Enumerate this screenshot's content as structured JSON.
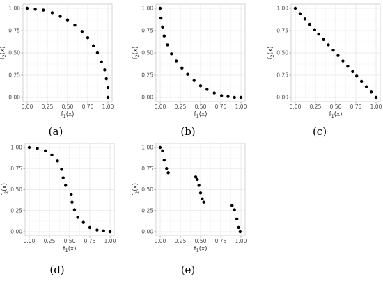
{
  "figure": {
    "captions": [
      "(a)",
      "(b)",
      "(c)",
      "(d)",
      "(e)"
    ]
  },
  "colors": {
    "panel_bg": "#ffffff",
    "grid_major": "#e6e6e6",
    "grid_minor": "#f3f3f3",
    "border": "#c8c8c8",
    "point": "#000000",
    "tick_text": "#4d4d4d",
    "axis_title": "#222222"
  },
  "chart_data": [
    {
      "id": "a",
      "type": "scatter",
      "xlabel": "f1(x)",
      "ylabel": "f2(x)",
      "xlim": [
        0,
        1
      ],
      "ylim": [
        0,
        1
      ],
      "xticks": [
        "0.00",
        "0.25",
        "0.50",
        "0.75",
        "1.00"
      ],
      "yticks": [
        "0.00",
        "0.25",
        "0.50",
        "0.75",
        "1.00"
      ],
      "grid": true,
      "x": [
        0.0,
        0.1,
        0.2,
        0.31,
        0.41,
        0.5,
        0.59,
        0.68,
        0.75,
        0.82,
        0.87,
        0.92,
        0.96,
        0.98,
        1.0,
        1.0
      ],
      "y": [
        1.0,
        0.99,
        0.98,
        0.95,
        0.91,
        0.87,
        0.81,
        0.74,
        0.67,
        0.58,
        0.5,
        0.4,
        0.31,
        0.21,
        0.11,
        0.0
      ]
    },
    {
      "id": "b",
      "type": "scatter",
      "xlabel": "f1(x)",
      "ylabel": "f2(x)",
      "xlim": [
        0,
        1
      ],
      "ylim": [
        0,
        1
      ],
      "xticks": [
        "0.00",
        "0.25",
        "0.50",
        "0.75",
        "1.00"
      ],
      "yticks": [
        "0.00",
        "0.25",
        "0.50",
        "0.75",
        "1.00"
      ],
      "grid": true,
      "x": [
        0.0,
        0.01,
        0.03,
        0.05,
        0.09,
        0.14,
        0.2,
        0.27,
        0.34,
        0.42,
        0.5,
        0.58,
        0.67,
        0.76,
        0.84,
        0.92,
        1.0
      ],
      "y": [
        1.0,
        0.89,
        0.79,
        0.69,
        0.59,
        0.49,
        0.41,
        0.33,
        0.26,
        0.19,
        0.13,
        0.09,
        0.05,
        0.02,
        0.01,
        0.0,
        0.0
      ]
    },
    {
      "id": "c",
      "type": "scatter",
      "xlabel": "f1(x)",
      "ylabel": "f2(x)",
      "xlim": [
        0,
        1
      ],
      "ylim": [
        0,
        1
      ],
      "xticks": [
        "0.00",
        "0.25",
        "0.50",
        "0.75",
        "1.00"
      ],
      "yticks": [
        "0.00",
        "0.25",
        "0.50",
        "0.75",
        "1.00"
      ],
      "grid": true,
      "x": [
        0.0,
        0.06,
        0.12,
        0.18,
        0.24,
        0.29,
        0.35,
        0.41,
        0.47,
        0.53,
        0.59,
        0.65,
        0.71,
        0.76,
        0.82,
        0.88,
        0.94,
        1.0
      ],
      "y": [
        1.0,
        0.94,
        0.88,
        0.82,
        0.76,
        0.71,
        0.65,
        0.59,
        0.53,
        0.47,
        0.41,
        0.35,
        0.29,
        0.24,
        0.18,
        0.12,
        0.06,
        0.0
      ]
    },
    {
      "id": "d",
      "type": "scatter",
      "xlabel": "f1(x)",
      "ylabel": "f2(x)",
      "xlim": [
        0,
        1
      ],
      "ylim": [
        0,
        1
      ],
      "xticks": [
        "0.00",
        "0.25",
        "0.50",
        "0.75",
        "1.00"
      ],
      "yticks": [
        "0.00",
        "0.25",
        "0.50",
        "0.75",
        "1.00"
      ],
      "grid": true,
      "x": [
        0.0,
        0.1,
        0.2,
        0.28,
        0.35,
        0.4,
        0.42,
        0.45,
        0.52,
        0.53,
        0.56,
        0.6,
        0.67,
        0.75,
        0.84,
        0.92,
        1.0
      ],
      "y": [
        1.0,
        0.99,
        0.96,
        0.91,
        0.84,
        0.74,
        0.64,
        0.55,
        0.44,
        0.35,
        0.26,
        0.17,
        0.11,
        0.05,
        0.02,
        0.01,
        0.0
      ]
    },
    {
      "id": "e",
      "type": "scatter",
      "xlabel": "f1(x)",
      "ylabel": "f2(x)",
      "xlim": [
        0,
        1
      ],
      "ylim": [
        0,
        1
      ],
      "xticks": [
        "0.00",
        "0.25",
        "0.50",
        "0.75",
        "1.00"
      ],
      "yticks": [
        "0.00",
        "0.25",
        "0.50",
        "0.75",
        "1.00"
      ],
      "grid": true,
      "x": [
        0.0,
        0.03,
        0.05,
        0.08,
        0.1,
        0.44,
        0.46,
        0.48,
        0.5,
        0.52,
        0.54,
        0.89,
        0.92,
        0.95,
        0.97,
        0.99
      ],
      "y": [
        1.0,
        0.96,
        0.85,
        0.75,
        0.7,
        0.65,
        0.62,
        0.55,
        0.46,
        0.39,
        0.35,
        0.31,
        0.26,
        0.15,
        0.05,
        0.0
      ]
    }
  ]
}
